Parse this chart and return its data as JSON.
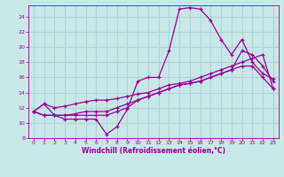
{
  "xlabel": "Windchill (Refroidissement éolien,°C)",
  "xlim": [
    -0.5,
    23.5
  ],
  "ylim": [
    8,
    25.5
  ],
  "yticks": [
    8,
    10,
    12,
    14,
    16,
    18,
    20,
    22,
    24
  ],
  "xticks": [
    0,
    1,
    2,
    3,
    4,
    5,
    6,
    7,
    8,
    9,
    10,
    11,
    12,
    13,
    14,
    15,
    16,
    17,
    18,
    19,
    20,
    21,
    22,
    23
  ],
  "background_color": "#c8e8e8",
  "grid_color": "#aed4d4",
  "line_color": "#990099",
  "marker": "+",
  "lines": [
    {
      "x": [
        0,
        1,
        2,
        3,
        4,
        5,
        6,
        7,
        8,
        9,
        10,
        11,
        12,
        13,
        14,
        15,
        16,
        17,
        18,
        19,
        20,
        21,
        22,
        23
      ],
      "y": [
        11.5,
        12.5,
        11.0,
        10.5,
        10.5,
        10.5,
        10.5,
        8.5,
        9.5,
        11.8,
        15.5,
        16.0,
        16.0,
        19.5,
        25.0,
        25.2,
        25.0,
        23.5,
        21.0,
        19.0,
        21.0,
        18.0,
        16.5,
        15.8
      ]
    },
    {
      "x": [
        0,
        1,
        2,
        3,
        4,
        5,
        6,
        7,
        8,
        9,
        10,
        11,
        12,
        13,
        14,
        15,
        16,
        17,
        18,
        19,
        20,
        21,
        22,
        23
      ],
      "y": [
        11.5,
        11.0,
        11.0,
        11.0,
        11.0,
        11.0,
        11.0,
        11.0,
        11.5,
        12.0,
        13.0,
        13.5,
        14.0,
        14.5,
        15.0,
        15.2,
        15.5,
        16.0,
        16.5,
        17.0,
        19.5,
        19.0,
        17.5,
        15.5
      ]
    },
    {
      "x": [
        0,
        1,
        2,
        3,
        4,
        5,
        6,
        7,
        8,
        9,
        10,
        11,
        12,
        13,
        14,
        15,
        16,
        17,
        18,
        19,
        20,
        21,
        22,
        23
      ],
      "y": [
        11.5,
        12.5,
        12.0,
        12.2,
        12.5,
        12.8,
        13.0,
        13.0,
        13.2,
        13.5,
        13.8,
        14.0,
        14.5,
        15.0,
        15.2,
        15.5,
        16.0,
        16.5,
        17.0,
        17.5,
        18.0,
        18.5,
        19.0,
        14.5
      ]
    },
    {
      "x": [
        0,
        1,
        2,
        3,
        4,
        5,
        6,
        7,
        8,
        9,
        10,
        11,
        12,
        13,
        14,
        15,
        16,
        17,
        18,
        19,
        20,
        21,
        22,
        23
      ],
      "y": [
        11.5,
        11.0,
        11.0,
        11.0,
        11.2,
        11.5,
        11.5,
        11.5,
        12.0,
        12.5,
        13.0,
        13.5,
        14.0,
        14.5,
        15.0,
        15.2,
        15.5,
        16.0,
        16.5,
        17.0,
        17.5,
        17.5,
        16.0,
        14.5
      ]
    }
  ]
}
